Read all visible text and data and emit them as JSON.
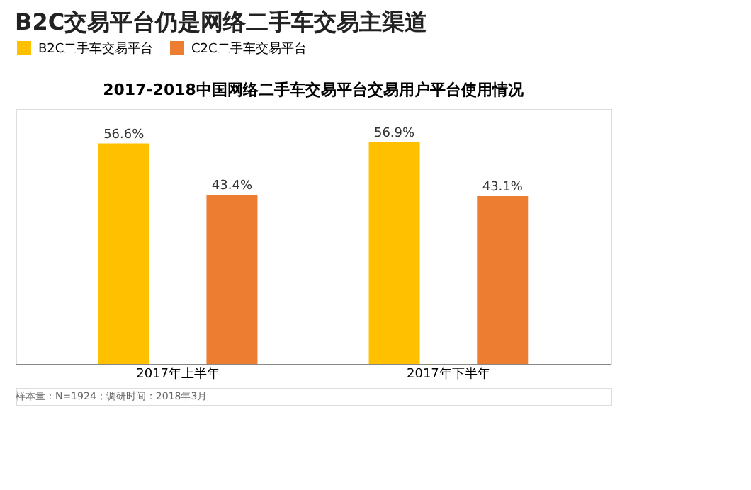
{
  "chart_data": {
    "type": "bar",
    "title": "B2C交易平台仍是网络二手车交易主渠道",
    "subtitle": "2017-2018中国网络二手车交易平台交易用户平台使用情况",
    "categories": [
      "2017年上半年",
      "2017年下半年"
    ],
    "series": [
      {
        "name": "B2C二手车交易平台",
        "color": "#ffc000",
        "values": [
          56.6,
          56.9
        ],
        "value_labels": [
          "56.6%",
          "56.9%"
        ]
      },
      {
        "name": "C2C二手车交易平台",
        "color": "#ed7d31",
        "values": [
          43.4,
          43.1
        ],
        "value_labels": [
          "43.4%",
          "43.1%"
        ]
      }
    ],
    "legend": "top",
    "annotations": [
      "样本量：N=1924；调研时间：2018年3月"
    ]
  }
}
